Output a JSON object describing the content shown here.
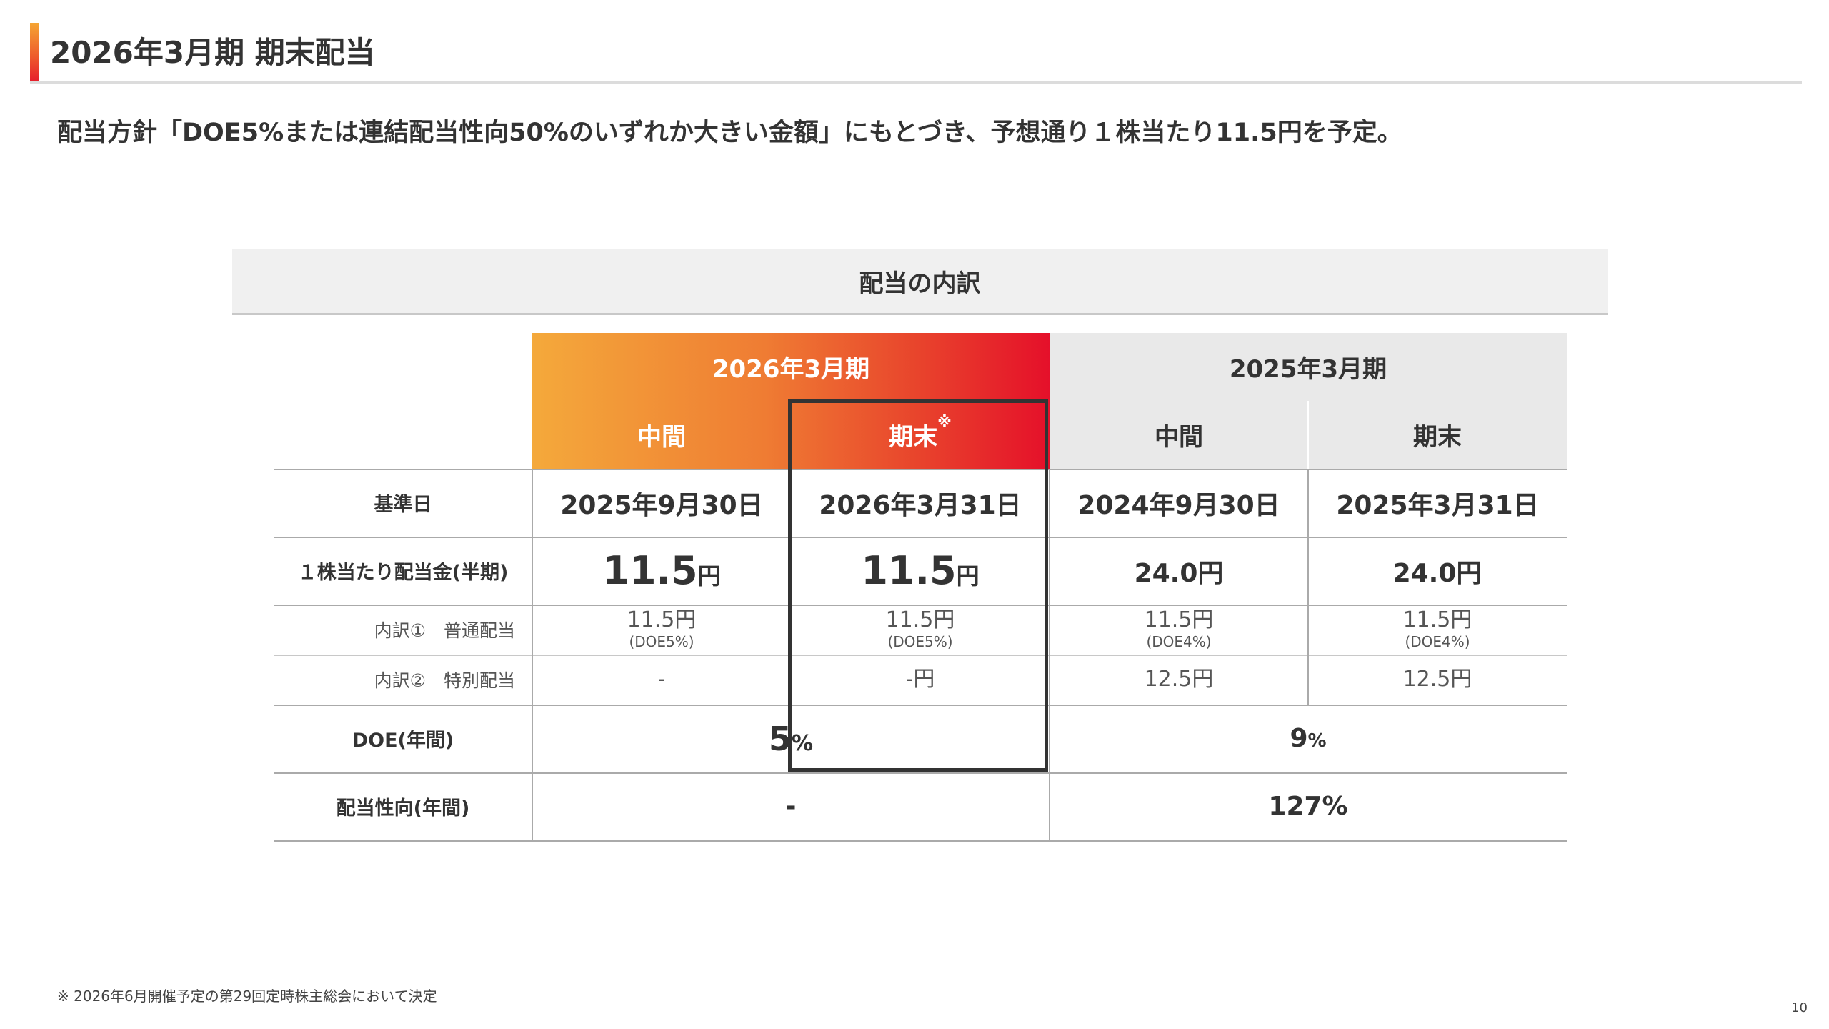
{
  "header": {
    "title": "2026年3月期 期末配当"
  },
  "lead": "配当方針「DOE5%または連結配当性向50%のいずれか大きい金額」にもとづき、予想通り１株当たり11.5円を予定。",
  "section_title": "配当の内訳",
  "table": {
    "period_2026": "2026年3月期",
    "period_2025": "2025年3月期",
    "col_interim": "中間",
    "col_final": "期末",
    "col_final_mark": "※",
    "row_labels": {
      "record_date": "基準日",
      "dps": "１株当たり配当金(半期)",
      "breakdown1": "内訳①　普通配当",
      "breakdown2": "内訳②　特別配当",
      "doe": "DOE(年間)",
      "payout": "配当性向(年間)"
    },
    "record_dates": [
      "2025年9月30日",
      "2026年3月31日",
      "2024年9月30日",
      "2025年3月31日"
    ],
    "dps": [
      {
        "value": "11.5",
        "unit": "円"
      },
      {
        "value": "11.5",
        "unit": "円"
      },
      {
        "value": "24.0",
        "unit": "円"
      },
      {
        "value": "24.0",
        "unit": "円"
      }
    ],
    "ordinary": [
      {
        "value": "11.5円",
        "note": "(DOE5%)"
      },
      {
        "value": "11.5円",
        "note": "(DOE5%)"
      },
      {
        "value": "11.5円",
        "note": "(DOE4%)"
      },
      {
        "value": "11.5円",
        "note": "(DOE4%)"
      }
    ],
    "special": [
      "-",
      "-円",
      "12.5円",
      "12.5円"
    ],
    "doe": [
      {
        "value": "5",
        "unit": "%"
      },
      {
        "value": "9",
        "unit": "%"
      }
    ],
    "payout": [
      "-",
      "127%"
    ]
  },
  "footnote": "※ 2026年6月開催予定の第29回定時株主総会において決定",
  "page_number": "10"
}
